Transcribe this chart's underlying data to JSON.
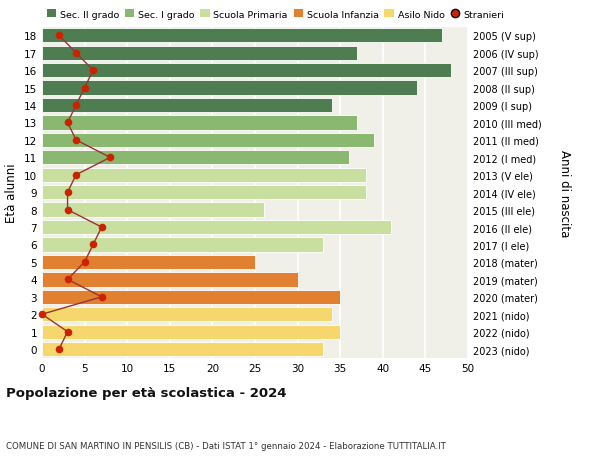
{
  "ages": [
    0,
    1,
    2,
    3,
    4,
    5,
    6,
    7,
    8,
    9,
    10,
    11,
    12,
    13,
    14,
    15,
    16,
    17,
    18
  ],
  "right_labels": [
    "2023 (nido)",
    "2022 (nido)",
    "2021 (nido)",
    "2020 (mater)",
    "2019 (mater)",
    "2018 (mater)",
    "2017 (I ele)",
    "2016 (II ele)",
    "2015 (III ele)",
    "2014 (IV ele)",
    "2013 (V ele)",
    "2012 (I med)",
    "2011 (II med)",
    "2010 (III med)",
    "2009 (I sup)",
    "2008 (II sup)",
    "2007 (III sup)",
    "2006 (IV sup)",
    "2005 (V sup)"
  ],
  "bar_values": [
    33,
    35,
    34,
    35,
    30,
    25,
    33,
    41,
    26,
    38,
    38,
    36,
    39,
    37,
    34,
    44,
    48,
    37,
    47
  ],
  "stranieri": [
    2,
    3,
    0,
    7,
    3,
    5,
    6,
    7,
    3,
    3,
    4,
    8,
    4,
    3,
    4,
    5,
    6,
    4,
    2
  ],
  "bar_colors": [
    "#f5d76e",
    "#f5d76e",
    "#f5d76e",
    "#e08030",
    "#e08030",
    "#e08030",
    "#c8dfa0",
    "#c8dfa0",
    "#c8dfa0",
    "#c8dfa0",
    "#c8dfa0",
    "#8ab870",
    "#8ab870",
    "#8ab870",
    "#4e7d52",
    "#4e7d52",
    "#4e7d52",
    "#4e7d52",
    "#4e7d52"
  ],
  "legend_labels": [
    "Sec. II grado",
    "Sec. I grado",
    "Scuola Primaria",
    "Scuola Infanzia",
    "Asilo Nido",
    "Stranieri"
  ],
  "legend_colors": [
    "#4e7d52",
    "#8ab870",
    "#c8dfa0",
    "#e08030",
    "#f5d76e",
    "#cc2200"
  ],
  "stranieri_line_color": "#993333",
  "stranieri_dot_color": "#cc2200",
  "title": "Popolazione per età scolastica - 2024",
  "subtitle": "COMUNE DI SAN MARTINO IN PENSILIS (CB) - Dati ISTAT 1° gennaio 2024 - Elaborazione TUTTITALIA.IT",
  "ylabel_left": "Età alunni",
  "ylabel_right": "Anni di nascita",
  "xlim": [
    0,
    50
  ],
  "xticks": [
    0,
    5,
    10,
    15,
    20,
    25,
    30,
    35,
    40,
    45,
    50
  ],
  "bg_color": "#f0f0e8",
  "grid_color": "#ffffff",
  "bar_height": 0.82
}
